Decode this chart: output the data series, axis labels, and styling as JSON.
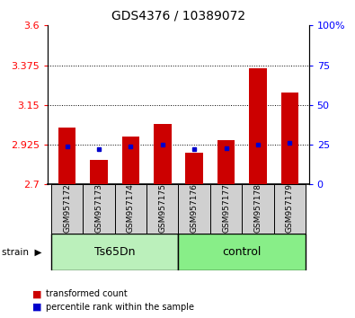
{
  "title": "GDS4376 / 10389072",
  "samples": [
    "GSM957172",
    "GSM957173",
    "GSM957174",
    "GSM957175",
    "GSM957176",
    "GSM957177",
    "GSM957178",
    "GSM957179"
  ],
  "red_values": [
    3.02,
    2.84,
    2.97,
    3.04,
    2.88,
    2.95,
    3.36,
    3.22
  ],
  "blue_values": [
    24,
    22,
    24,
    25,
    22,
    23,
    25,
    26
  ],
  "ylim_left": [
    2.7,
    3.6
  ],
  "ylim_right": [
    0,
    100
  ],
  "yticks_left": [
    2.7,
    2.925,
    3.15,
    3.375,
    3.6
  ],
  "yticks_right": [
    0,
    25,
    50,
    75,
    100
  ],
  "ytick_labels_left": [
    "2.7",
    "2.925",
    "3.15",
    "3.375",
    "3.6"
  ],
  "ytick_labels_right": [
    "0",
    "25",
    "50",
    "75",
    "100%"
  ],
  "grid_values": [
    2.925,
    3.15,
    3.375
  ],
  "bar_color": "#cc0000",
  "dot_color": "#0000cc",
  "bar_bottom": 2.7,
  "bar_width": 0.55,
  "group_colors_ts": "#bbf0bb",
  "group_colors_ctrl": "#88ee88",
  "legend_items": [
    "transformed count",
    "percentile rank within the sample"
  ],
  "title_fontsize": 10,
  "tick_fontsize": 8,
  "sample_fontsize": 6.5,
  "group_fontsize": 9,
  "legend_fontsize": 7
}
